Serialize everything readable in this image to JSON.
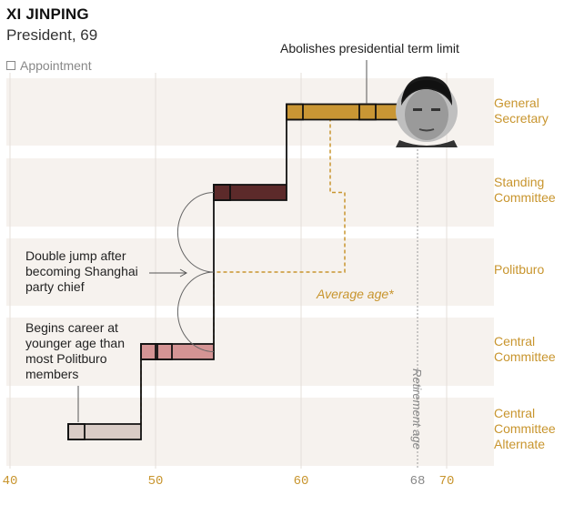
{
  "header": {
    "title": "XI JINPING",
    "subtitle": "President, 69"
  },
  "legend": {
    "appointment_label": "Appointment"
  },
  "annotations": {
    "term_limit": "Abolishes presidential term limit",
    "double_jump_1": "Double jump after",
    "double_jump_2": "becoming Shanghai",
    "double_jump_3": "party chief",
    "career_1": "Begins career at",
    "career_2": "younger age than",
    "career_3": "most Politburo",
    "career_4": "members",
    "average_age": "Average age*",
    "retirement_age": "Retirement age"
  },
  "ranks": [
    {
      "lines": [
        "General",
        "Secretary"
      ]
    },
    {
      "lines": [
        "Standing",
        "Committee"
      ]
    },
    {
      "lines": [
        "Politburo"
      ]
    },
    {
      "lines": [
        "Central",
        "Committee"
      ]
    },
    {
      "lines": [
        "Central",
        "Committee",
        "Alternate"
      ]
    }
  ],
  "colors": {
    "general_secretary": "#c99634",
    "standing_committee": "#5c2a2a",
    "central_committee": "#d49494",
    "alternate": "#d9ccc6",
    "band": "#f6f2ee",
    "average": "#c8952e",
    "rank_label": "#c8952e"
  },
  "icons": {
    "portrait": "xi-jinping-portrait-icon"
  },
  "chart_data": {
    "type": "step",
    "title": "XI JINPING",
    "subtitle": "President, 69",
    "xlim": [
      40,
      73
    ],
    "xticks": [
      40,
      50,
      60,
      68,
      70
    ],
    "rank_levels": [
      "Central Committee Alternate",
      "Central Committee",
      "Politburo",
      "Standing Committee",
      "General Secretary"
    ],
    "series": [
      {
        "segments": [
          {
            "rank": "Central Committee Alternate",
            "start_age": 44,
            "end_age": 49
          },
          {
            "rank": "Central Committee",
            "start_age": 49,
            "end_age": 54
          },
          {
            "rank": "Standing Committee",
            "start_age": 54,
            "end_age": 59
          },
          {
            "rank": "General Secretary",
            "start_age": 59,
            "end_age": 69
          }
        ],
        "appointments": [
          {
            "rank": "Central Committee Alternate",
            "age": 44
          },
          {
            "rank": "Central Committee",
            "age": 49
          },
          {
            "rank": "Central Committee",
            "age": 50
          },
          {
            "rank": "Standing Committee",
            "age": 54
          },
          {
            "rank": "General Secretary",
            "age": 59
          },
          {
            "rank": "General Secretary",
            "age": 64
          }
        ]
      },
      {
        "name": "Average age*",
        "steps": [
          {
            "rank": "Central Committee Alternate",
            "age": 49
          },
          {
            "rank": "Central Committee",
            "age": 54
          },
          {
            "rank": "Politburo",
            "age": 63
          },
          {
            "rank": "Standing Committee",
            "age": 62
          },
          {
            "rank": "General Secretary",
            "age": 60.5
          }
        ]
      }
    ],
    "retirement_age": 68
  }
}
